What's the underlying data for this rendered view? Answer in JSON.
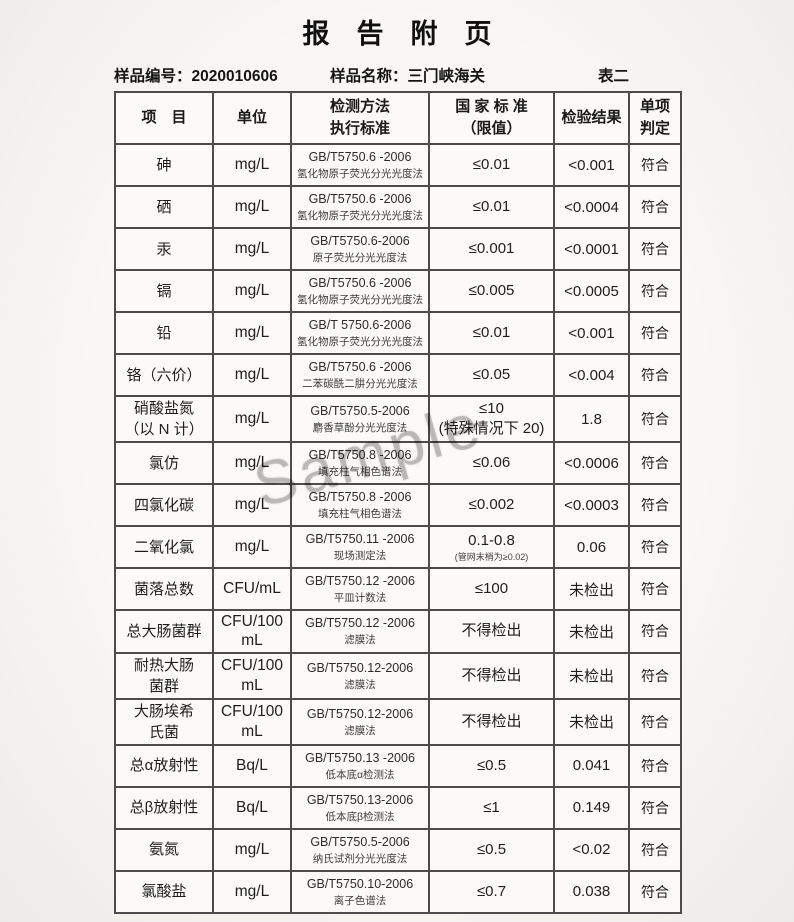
{
  "page": {
    "title": "报　告　附　页",
    "sample_no": {
      "label": "样品编号：",
      "value": "2020010606"
    },
    "sample_name": {
      "label": "样品名称：",
      "value": "三门峡海关"
    },
    "table_tag": "表二"
  },
  "watermark": "Sample",
  "table": {
    "columns": [
      "项　目",
      "单位",
      "检测方法\n执行标准",
      "国 家 标 准\n（限值）",
      "检验结果",
      "单项\n判定"
    ],
    "rows": [
      {
        "item": "砷",
        "unit": "mg/L",
        "method_std": "GB/T5750.6 -2006",
        "method_name": "氢化物原子荧光分光光度法",
        "limit": "≤0.01",
        "limit_note": "",
        "result": "<0.001",
        "judge": "符合"
      },
      {
        "item": "硒",
        "unit": "mg/L",
        "method_std": "GB/T5750.6 -2006",
        "method_name": "氢化物原子荧光分光光度法",
        "limit": "≤0.01",
        "limit_note": "",
        "result": "<0.0004",
        "judge": "符合"
      },
      {
        "item": "汞",
        "unit": "mg/L",
        "method_std": "GB/T5750.6-2006",
        "method_name": "原子荧光分光光度法",
        "limit": "≤0.001",
        "limit_note": "",
        "result": "<0.0001",
        "judge": "符合"
      },
      {
        "item": "镉",
        "unit": "mg/L",
        "method_std": "GB/T5750.6 -2006",
        "method_name": "氢化物原子荧光分光光度法",
        "limit": "≤0.005",
        "limit_note": "",
        "result": "<0.0005",
        "judge": "符合"
      },
      {
        "item": "铅",
        "unit": "mg/L",
        "method_std": "GB/T 5750.6-2006",
        "method_name": "氢化物原子荧光分光光度法",
        "limit": "≤0.01",
        "limit_note": "",
        "result": "<0.001",
        "judge": "符合"
      },
      {
        "item": "铬（六价）",
        "unit": "mg/L",
        "method_std": "GB/T5750.6 -2006",
        "method_name": "二苯碳酰二肼分光光度法",
        "limit": "≤0.05",
        "limit_note": "",
        "result": "<0.004",
        "judge": "符合"
      },
      {
        "item": "硝酸盐氮\n（以 N 计）",
        "unit": "mg/L",
        "method_std": "GB/T5750.5-2006",
        "method_name": "麝香草酚分光光度法",
        "limit": "≤10\n(特殊情况下 20)",
        "limit_note": "",
        "result": "1.8",
        "judge": "符合"
      },
      {
        "item": "氯仿",
        "unit": "mg/L",
        "method_std": "GB/T5750.8 -2006",
        "method_name": "填充柱气相色谱法",
        "limit": "≤0.06",
        "limit_note": "",
        "result": "<0.0006",
        "judge": "符合"
      },
      {
        "item": "四氯化碳",
        "unit": "mg/L",
        "method_std": "GB/T5750.8 -2006",
        "method_name": "填充柱气相色谱法",
        "limit": "≤0.002",
        "limit_note": "",
        "result": "<0.0003",
        "judge": "符合"
      },
      {
        "item": "二氧化氯",
        "unit": "mg/L",
        "method_std": "GB/T5750.11 -2006",
        "method_name": "现场测定法",
        "limit": "0.1-0.8",
        "limit_note": "(管网末梢为≥0.02)",
        "result": "0.06",
        "judge": "符合"
      },
      {
        "item": "菌落总数",
        "unit": "CFU/mL",
        "method_std": "GB/T5750.12 -2006",
        "method_name": "平皿计数法",
        "limit": "≤100",
        "limit_note": "",
        "result": "未检出",
        "judge": "符合"
      },
      {
        "item": "总大肠菌群",
        "unit": "CFU/100\nmL",
        "method_std": "GB/T5750.12 -2006",
        "method_name": "滤膜法",
        "limit": "不得检出",
        "limit_note": "",
        "result": "未检出",
        "judge": "符合"
      },
      {
        "item": "耐热大肠\n菌群",
        "unit": "CFU/100\nmL",
        "method_std": "GB/T5750.12-2006",
        "method_name": "滤膜法",
        "limit": "不得检出",
        "limit_note": "",
        "result": "未检出",
        "judge": "符合"
      },
      {
        "item": "大肠埃希\n氏菌",
        "unit": "CFU/100\nmL",
        "method_std": "GB/T5750.12-2006",
        "method_name": "滤膜法",
        "limit": "不得检出",
        "limit_note": "",
        "result": "未检出",
        "judge": "符合"
      },
      {
        "item": "总α放射性",
        "unit": "Bq/L",
        "method_std": "GB/T5750.13 -2006",
        "method_name": "低本底α检测法",
        "limit": "≤0.5",
        "limit_note": "",
        "result": "0.041",
        "judge": "符合"
      },
      {
        "item": "总β放射性",
        "unit": "Bq/L",
        "method_std": "GB/T5750.13-2006",
        "method_name": "低本底β检测法",
        "limit": "≤1",
        "limit_note": "",
        "result": "0.149",
        "judge": "符合"
      },
      {
        "item": "氨氮",
        "unit": "mg/L",
        "method_std": "GB/T5750.5-2006",
        "method_name": "纳氏试剂分光光度法",
        "limit": "≤0.5",
        "limit_note": "",
        "result": "<0.02",
        "judge": "符合"
      },
      {
        "item": "氯酸盐",
        "unit": "mg/L",
        "method_std": "GB/T5750.10-2006",
        "method_name": "离子色谱法",
        "limit": "≤0.7",
        "limit_note": "",
        "result": "0.038",
        "judge": "符合"
      }
    ]
  }
}
